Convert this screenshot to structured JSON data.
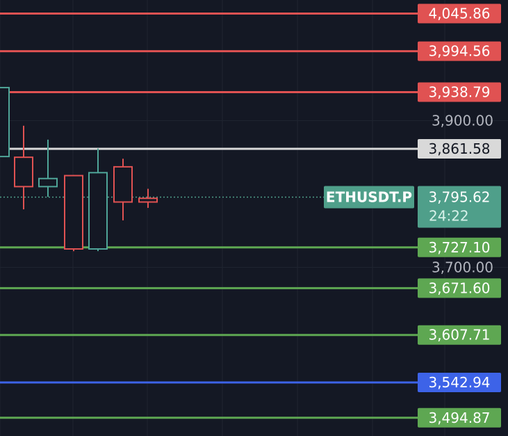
{
  "chart_data": {
    "type": "candlestick",
    "symbol": "ETHUSDT.P",
    "countdown": "24:22",
    "last_price": 3795.62,
    "y_range": [
      3470.0,
      4064.4
    ],
    "axis_labels": [
      {
        "price": 3900.0,
        "label": "3,900.00"
      },
      {
        "price": 3700.0,
        "label": "3,700.00"
      }
    ],
    "horizontal_levels": [
      {
        "price": 4045.86,
        "label": "4,045.86",
        "kind": "resistance"
      },
      {
        "price": 3994.56,
        "label": "3,994.56",
        "kind": "resistance"
      },
      {
        "price": 3938.79,
        "label": "3,938.79",
        "kind": "resistance"
      },
      {
        "price": 3861.58,
        "label": "3,861.58",
        "kind": "pivot"
      },
      {
        "price": 3727.1,
        "label": "3,727.10",
        "kind": "support"
      },
      {
        "price": 3671.6,
        "label": "3,671.60",
        "kind": "support"
      },
      {
        "price": 3607.71,
        "label": "3,607.71",
        "kind": "support"
      },
      {
        "price": 3542.94,
        "label": "3,542.94",
        "kind": "blue"
      },
      {
        "price": 3494.87,
        "label": "3,494.87",
        "kind": "support"
      }
    ],
    "candles": [
      {
        "index": 0,
        "open": 3851.0,
        "high": 3945.0,
        "low": 3851.0,
        "close": 3945.0
      },
      {
        "index": 1,
        "open": 3850.0,
        "high": 3893.0,
        "low": 3779.0,
        "close": 3810.0
      },
      {
        "index": 2,
        "open": 3810.0,
        "high": 3874.0,
        "low": 3796.0,
        "close": 3821.0
      },
      {
        "index": 3,
        "open": 3825.0,
        "high": 3826.0,
        "low": 3722.0,
        "close": 3725.0
      },
      {
        "index": 4,
        "open": 3725.0,
        "high": 3862.0,
        "low": 3722.0,
        "close": 3829.0
      },
      {
        "index": 5,
        "open": 3837.0,
        "high": 3848.0,
        "low": 3764.0,
        "close": 3789.0
      },
      {
        "index": 6,
        "open": 3794.0,
        "high": 3807.0,
        "low": 3781.0,
        "close": 3789.0
      }
    ],
    "colors": {
      "background": "#141824",
      "grid": "#1f2430",
      "resistance": "#e05252",
      "pivot": "#d9d9d9",
      "support": "#5ea752",
      "blue": "#3d63e8",
      "up_candle": "#4fa598",
      "down_candle": "#e05252",
      "last_price_tag": "#4f9f8a",
      "axis_text": "#b2b5be"
    }
  }
}
